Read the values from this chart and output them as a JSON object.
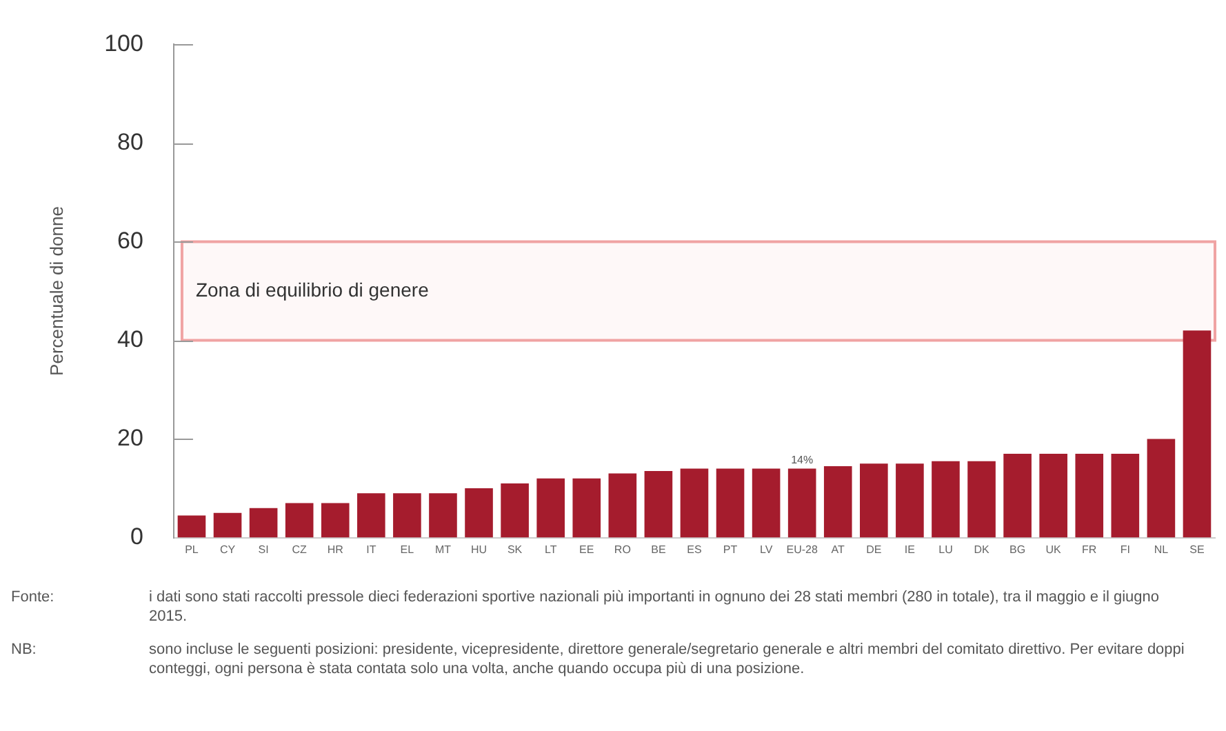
{
  "chart_data": {
    "type": "bar",
    "ylabel": "Percentuale di donne",
    "categories": [
      "PL",
      "CY",
      "SI",
      "CZ",
      "HR",
      "IT",
      "EL",
      "MT",
      "HU",
      "SK",
      "LT",
      "EE",
      "RO",
      "BE",
      "ES",
      "PT",
      "LV",
      "EU-28",
      "AT",
      "DE",
      "IE",
      "LU",
      "DK",
      "BG",
      "UK",
      "FR",
      "FI",
      "NL",
      "SE"
    ],
    "values": [
      4.5,
      5,
      6,
      7,
      7,
      9,
      9,
      9,
      10,
      11,
      12,
      12,
      13,
      13.5,
      14,
      14,
      14,
      14,
      14.5,
      15,
      15,
      15.5,
      15.5,
      17,
      17,
      17,
      17,
      20,
      42
    ],
    "value_labels": [
      null,
      null,
      null,
      null,
      null,
      null,
      null,
      null,
      null,
      null,
      null,
      null,
      null,
      null,
      null,
      null,
      null,
      "14%",
      null,
      null,
      null,
      null,
      null,
      null,
      null,
      null,
      null,
      null,
      null
    ],
    "color": "#a51c2d",
    "ylim": [
      0,
      100
    ],
    "yticks": [
      0,
      20,
      40,
      60,
      80,
      100
    ],
    "grid": false,
    "legend": false,
    "bands": [
      {
        "axis": "y",
        "from": 40,
        "to": 60,
        "label": "Zona di equilibrio di genere",
        "color": "#f0a3a3"
      }
    ],
    "annotations": [
      "Fonte:",
      "i dati sono stati raccolti pressole dieci federazioni sportive nazionali più importanti in ognuno dei 28 stati membri (280 in totale), tra il maggio e il giugno 2015.",
      "NB:",
      "sono incluse le seguenti posizioni: presidente, vicepresidente, direttore generale/segretario generale e altri membri del comitato direttivo. Per evitare doppi conteggi, ogni persona è stata contata solo una volta, anche quando occupa più di una posizione."
    ]
  }
}
